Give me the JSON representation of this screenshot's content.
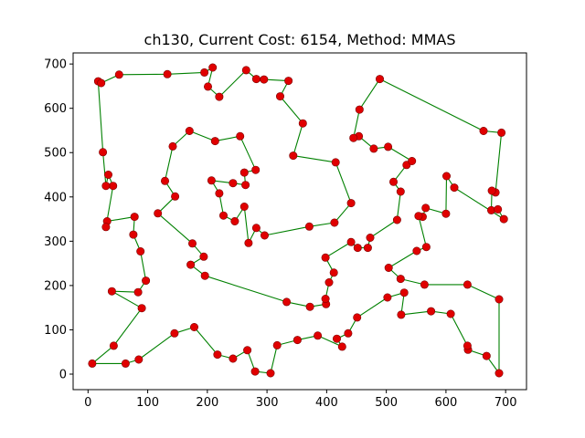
{
  "chart_data": {
    "type": "line",
    "title": "ch130, Current Cost: 6154, Method: MMAS",
    "xlabel": "",
    "ylabel": "",
    "xlim": [
      -25,
      735
    ],
    "ylim": [
      -35,
      725
    ],
    "xticks": [
      0,
      100,
      200,
      300,
      400,
      500,
      600,
      700
    ],
    "yticks": [
      0,
      100,
      200,
      300,
      400,
      500,
      600,
      700
    ],
    "grid": false,
    "colors": {
      "route": "#008000",
      "city": "#e00000"
    },
    "route": [
      [
        17,
        661
      ],
      [
        22,
        657
      ],
      [
        52,
        676
      ],
      [
        133,
        677
      ],
      [
        195,
        681
      ],
      [
        209,
        692
      ],
      [
        201,
        649
      ],
      [
        220,
        626
      ],
      [
        265,
        686
      ],
      [
        282,
        666
      ],
      [
        295,
        665
      ],
      [
        336,
        662
      ],
      [
        322,
        627
      ],
      [
        360,
        566
      ],
      [
        344,
        493
      ],
      [
        415,
        478
      ],
      [
        441,
        386
      ],
      [
        413,
        342
      ],
      [
        371,
        333
      ],
      [
        296,
        313
      ],
      [
        282,
        330
      ],
      [
        269,
        296
      ],
      [
        262,
        378
      ],
      [
        246,
        345
      ],
      [
        227,
        358
      ],
      [
        220,
        408
      ],
      [
        207,
        437
      ],
      [
        243,
        431
      ],
      [
        264,
        427
      ],
      [
        262,
        455
      ],
      [
        281,
        461
      ],
      [
        255,
        537
      ],
      [
        213,
        526
      ],
      [
        170,
        549
      ],
      [
        142,
        514
      ],
      [
        129,
        436
      ],
      [
        146,
        401
      ],
      [
        117,
        363
      ],
      [
        175,
        295
      ],
      [
        194,
        265
      ],
      [
        172,
        247
      ],
      [
        196,
        222
      ],
      [
        333,
        163
      ],
      [
        372,
        152
      ],
      [
        399,
        158
      ],
      [
        398,
        170
      ],
      [
        404,
        207
      ],
      [
        412,
        229
      ],
      [
        398,
        263
      ],
      [
        441,
        298
      ],
      [
        452,
        285
      ],
      [
        469,
        285
      ],
      [
        473,
        308
      ],
      [
        518,
        348
      ],
      [
        524,
        412
      ],
      [
        512,
        434
      ],
      [
        534,
        472
      ],
      [
        543,
        481
      ],
      [
        503,
        513
      ],
      [
        479,
        509
      ],
      [
        454,
        537
      ],
      [
        445,
        533
      ],
      [
        455,
        597
      ],
      [
        489,
        666
      ],
      [
        663,
        549
      ],
      [
        693,
        545
      ],
      [
        683,
        410
      ],
      [
        677,
        414
      ],
      [
        676,
        370
      ],
      [
        687,
        372
      ],
      [
        697,
        350
      ],
      [
        614,
        421
      ],
      [
        601,
        447
      ],
      [
        600,
        362
      ],
      [
        566,
        375
      ],
      [
        561,
        355
      ],
      [
        554,
        357
      ],
      [
        567,
        287
      ],
      [
        551,
        278
      ],
      [
        504,
        240
      ],
      [
        524,
        215
      ],
      [
        564,
        202
      ],
      [
        636,
        202
      ],
      [
        689,
        169
      ],
      [
        689,
        2
      ],
      [
        668,
        41
      ],
      [
        637,
        55
      ],
      [
        636,
        64
      ],
      [
        608,
        136
      ],
      [
        575,
        142
      ],
      [
        525,
        134
      ],
      [
        530,
        184
      ],
      [
        502,
        173
      ],
      [
        451,
        128
      ],
      [
        436,
        92
      ],
      [
        417,
        80
      ],
      [
        426,
        62
      ],
      [
        385,
        87
      ],
      [
        351,
        77
      ],
      [
        317,
        65
      ],
      [
        306,
        2
      ],
      [
        280,
        6
      ],
      [
        267,
        54
      ],
      [
        243,
        35
      ],
      [
        217,
        44
      ],
      [
        178,
        106
      ],
      [
        145,
        92
      ],
      [
        85,
        33
      ],
      [
        63,
        24
      ],
      [
        7,
        24
      ],
      [
        43,
        64
      ],
      [
        90,
        149
      ],
      [
        40,
        187
      ],
      [
        84,
        185
      ],
      [
        97,
        211
      ],
      [
        88,
        277
      ],
      [
        76,
        315
      ],
      [
        78,
        355
      ],
      [
        32,
        345
      ],
      [
        30,
        332
      ],
      [
        42,
        425
      ],
      [
        34,
        450
      ],
      [
        30,
        425
      ],
      [
        25,
        501
      ],
      [
        17,
        661
      ]
    ]
  }
}
